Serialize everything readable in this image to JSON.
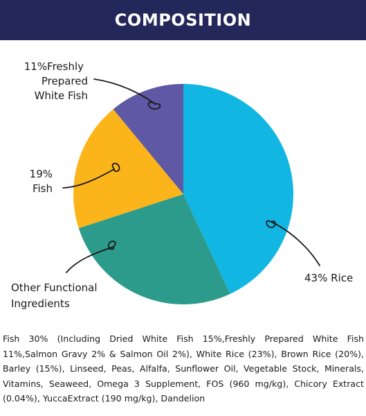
{
  "header": {
    "title": "COMPOSITION"
  },
  "chart_data": {
    "type": "pie",
    "title": "",
    "slices": [
      {
        "label": "43% Rice",
        "value": 43,
        "color": "#12b6e3"
      },
      {
        "label": "Other Functional Ingredients",
        "value": 27,
        "color": "#2d9b8b"
      },
      {
        "label": "19% Fish",
        "value": 19,
        "color": "#fbb419"
      },
      {
        "label": "11%Freshly Prepared White Fish",
        "value": 11,
        "color": "#5f58a5"
      }
    ],
    "labels": {
      "rice": [
        "43% Rice"
      ],
      "other": [
        "Other Functional",
        "Ingredients"
      ],
      "fish": [
        "19%",
        "Fish"
      ],
      "white_fish": [
        "11%Freshly",
        "Prepared",
        "White Fish"
      ]
    }
  },
  "description": "Fish 30% (Including Dried White Fish 15%,Freshly Prepared White Fish 11%,Salmon Gravy 2% & Salmon Oil 2%), White Rice (23%), Brown Rice (20%), Barley (15%), Linseed, Peas, Alfalfa, Sunflower Oil, Vegetable Stock, Minerals, Vitamins, Seaweed, Omega 3 Supplement, FOS (960 mg/kg), Chicory Extract (0.04%), YuccaExtract (190 mg/kg), Dandelion"
}
